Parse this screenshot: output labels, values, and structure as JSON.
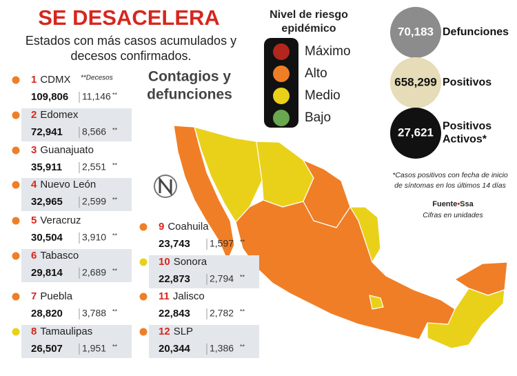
{
  "header": {
    "title": "SE DESACELERA",
    "subtitle": [
      "Estados con más casos acumulados y",
      "decesos confirmados."
    ]
  },
  "section_title": [
    "Contagios y",
    "defunciones"
  ],
  "deaths_note": "**Decesos",
  "deaths_mark": "**",
  "states": [
    {
      "rank": 1,
      "name": "CDMX",
      "cases": "109,806",
      "deaths": "11,146",
      "color": "#f07e26"
    },
    {
      "rank": 2,
      "name": "Edomex",
      "cases": "72,941",
      "deaths": "8,566",
      "color": "#f07e26"
    },
    {
      "rank": 3,
      "name": "Guanajuato",
      "cases": "35,911",
      "deaths": "2,551",
      "color": "#f07e26"
    },
    {
      "rank": 4,
      "name": "Nuevo León",
      "cases": "32,965",
      "deaths": "2,599",
      "color": "#f07e26"
    },
    {
      "rank": 5,
      "name": "Veracruz",
      "cases": "30,504",
      "deaths": "3,910",
      "color": "#f07e26"
    },
    {
      "rank": 6,
      "name": "Tabasco",
      "cases": "29,814",
      "deaths": "2,689",
      "color": "#f07e26"
    },
    {
      "rank": 7,
      "name": "Puebla",
      "cases": "28,820",
      "deaths": "3,788",
      "color": "#f07e26"
    },
    {
      "rank": 8,
      "name": "Tamaulipas",
      "cases": "26,507",
      "deaths": "1,951",
      "color": "#e9d11a"
    },
    {
      "rank": 9,
      "name": "Coahuila",
      "cases": "23,743",
      "deaths": "1,597",
      "color": "#f07e26"
    },
    {
      "rank": 10,
      "name": "Sonora",
      "cases": "22,873",
      "deaths": "2,794",
      "color": "#e9d11a"
    },
    {
      "rank": 11,
      "name": "Jalisco",
      "cases": "22,843",
      "deaths": "2,782",
      "color": "#f07e26"
    },
    {
      "rank": 12,
      "name": "SLP",
      "cases": "20,344",
      "deaths": "1,386",
      "color": "#f07e26"
    }
  ],
  "legend": {
    "title": [
      "Nivel de riesgo",
      "epidémico"
    ],
    "levels": [
      {
        "label": "Máximo",
        "color": "#b3261e"
      },
      {
        "label": "Alto",
        "color": "#f07e26"
      },
      {
        "label": "Medio",
        "color": "#e9d11a"
      },
      {
        "label": "Bajo",
        "color": "#6aa84f"
      }
    ]
  },
  "totals": [
    {
      "value": "70,183",
      "label": [
        "Defunciones"
      ],
      "color": "#8c8c8c",
      "text_color": "#ffffff"
    },
    {
      "value": "658,299",
      "label": [
        "Positivos"
      ],
      "color": "#e6dcb8",
      "text_color": "#111111"
    },
    {
      "value": "27,621",
      "label": [
        "Positivos",
        "Activos*"
      ],
      "color": "#111111",
      "text_color": "#ffffff"
    }
  ],
  "footnote": [
    "*Casos positivos con fecha de inicio",
    "de síntomas en los últimos 14 días"
  ],
  "source": {
    "prefix": "Fuente",
    "name": "Ssa"
  },
  "units_note": "Cifras en unidades"
}
